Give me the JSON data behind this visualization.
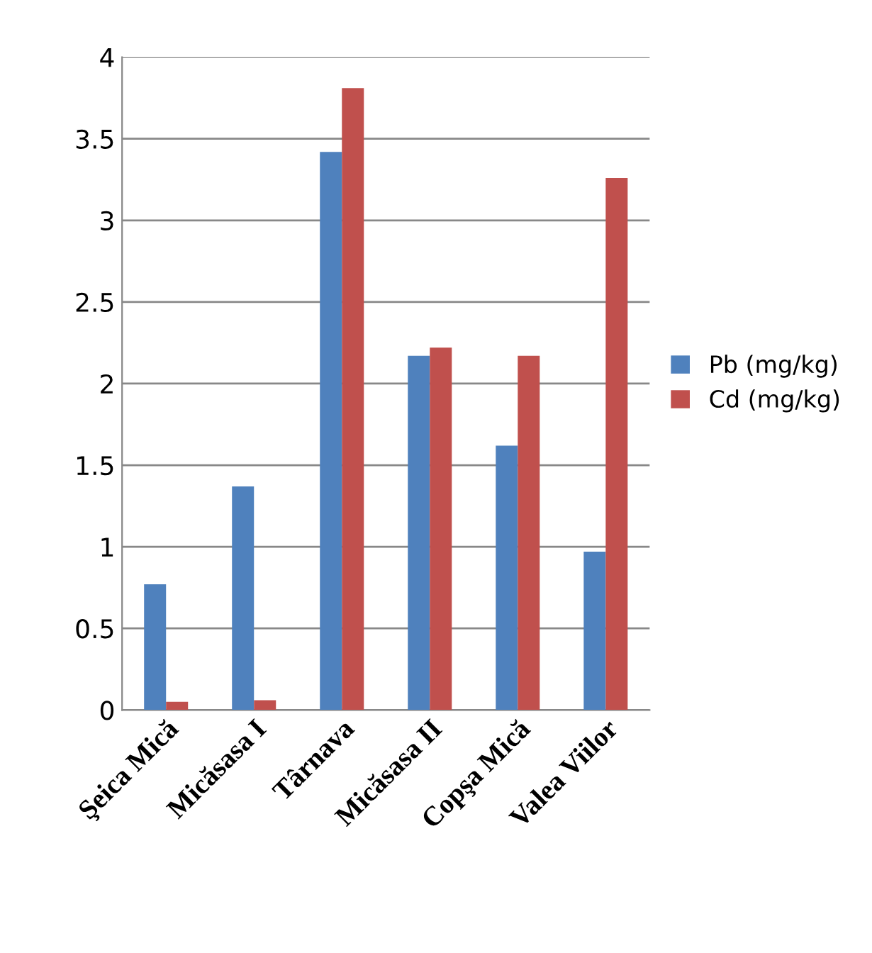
{
  "chart_data": {
    "type": "bar",
    "categories": [
      "Şeica Mică",
      "Micăsasa I",
      "Târnava",
      "Micăsasa II",
      "Copşa Mică",
      "Valea Viilor"
    ],
    "series": [
      {
        "name": "Pb (mg/kg)",
        "color": "#4f81bd",
        "values": [
          0.77,
          1.37,
          3.42,
          2.17,
          1.62,
          0.97
        ]
      },
      {
        "name": "Cd (mg/kg)",
        "color": "#c0504d",
        "values": [
          0.05,
          0.06,
          3.81,
          2.22,
          2.17,
          3.26
        ]
      }
    ],
    "ylim": [
      0,
      4
    ],
    "yticks": [
      0,
      0.5,
      1,
      1.5,
      2,
      2.5,
      3,
      3.5,
      4
    ],
    "grid": "y",
    "legend": "right"
  }
}
